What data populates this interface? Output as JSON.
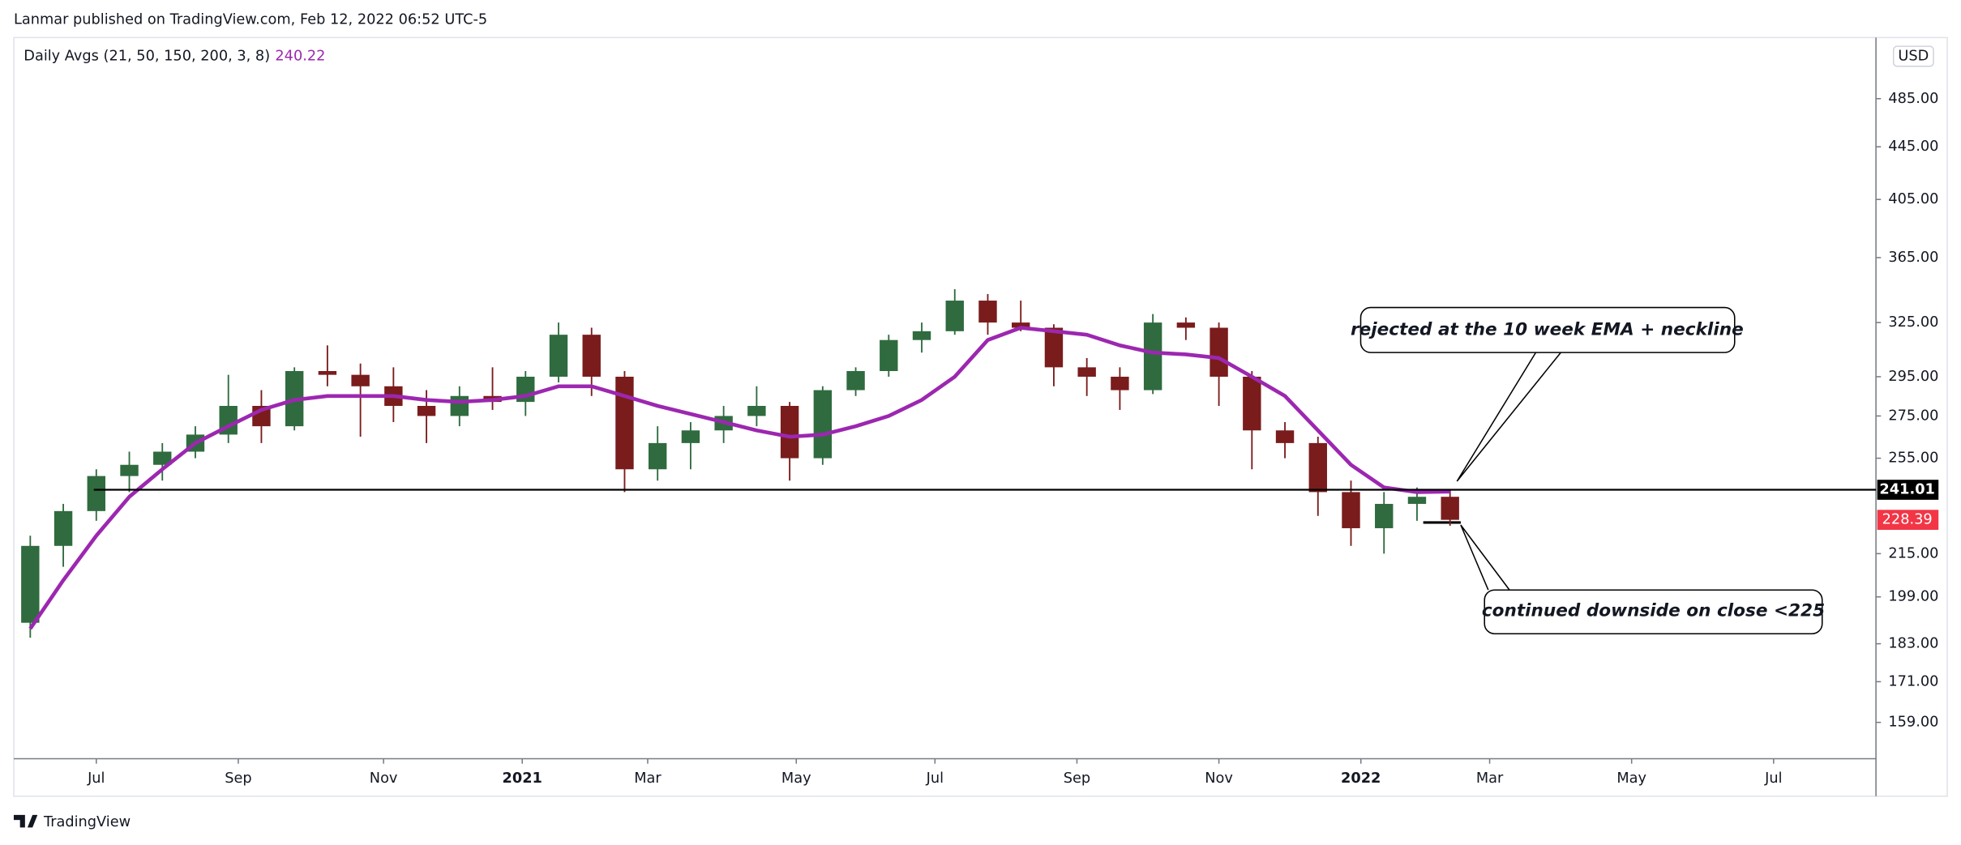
{
  "header": "Lanmar published on TradingView.com, Feb 12, 2022 06:52 UTC-5",
  "footer": "TradingView",
  "chart_data": {
    "type": "candlestick",
    "legend": "Daily Avgs (21, 50, 150, 200, 3, 8)",
    "currency": "USD",
    "log_scale": true,
    "up_color": "#2f6b3f",
    "down_color": "#7a1c1c",
    "open": [
      190,
      218,
      232,
      247,
      252,
      258,
      266,
      280,
      270,
      298,
      296,
      290,
      280,
      275,
      285,
      282,
      295,
      318,
      295,
      250,
      262,
      268,
      275,
      280,
      255,
      288,
      298,
      315,
      320,
      338,
      325,
      322,
      300,
      295,
      288,
      325,
      322,
      295,
      268,
      262,
      240,
      225,
      235,
      238
    ],
    "high": [
      222,
      235,
      250,
      258,
      262,
      270,
      296,
      288,
      300,
      312,
      302,
      300,
      288,
      290,
      300,
      298,
      325,
      322,
      298,
      270,
      272,
      280,
      290,
      282,
      290,
      300,
      318,
      325,
      345,
      342,
      338,
      324,
      305,
      300,
      330,
      328,
      325,
      298,
      272,
      265,
      245,
      240,
      242,
      241
    ],
    "low": [
      185,
      210,
      228,
      240,
      245,
      255,
      262,
      262,
      268,
      290,
      265,
      272,
      262,
      270,
      278,
      275,
      292,
      285,
      240,
      245,
      250,
      262,
      270,
      245,
      252,
      285,
      295,
      308,
      318,
      318,
      320,
      290,
      285,
      278,
      286,
      315,
      280,
      250,
      255,
      230,
      218,
      215,
      228,
      226
    ],
    "close": [
      218,
      232,
      247,
      252,
      258,
      266,
      280,
      270,
      298,
      296,
      290,
      280,
      275,
      285,
      282,
      295,
      318,
      295,
      250,
      262,
      268,
      275,
      280,
      255,
      288,
      298,
      315,
      320,
      338,
      325,
      322,
      300,
      295,
      288,
      325,
      322,
      295,
      268,
      262,
      240,
      225,
      235,
      238,
      228.39
    ],
    "ma": {
      "color": "#9c27b0",
      "values": [
        188,
        205,
        222,
        238,
        250,
        262,
        270,
        278,
        283,
        285,
        285,
        285,
        283,
        282,
        283,
        285,
        290,
        290,
        285,
        280,
        276,
        272,
        268,
        265,
        266,
        270,
        275,
        283,
        295,
        315,
        322,
        320,
        318,
        312,
        308,
        307,
        305,
        295,
        285,
        268,
        252,
        242,
        240,
        240.22
      ]
    },
    "hline": 241.01,
    "last_color": "#f23645",
    "xlim": [
      0,
      56.4
    ],
    "xticks": [
      {
        "value": 2.5,
        "label": "Jul"
      },
      {
        "value": 6.8,
        "label": "Sep"
      },
      {
        "value": 11.2,
        "label": "Nov"
      },
      {
        "value": 15.4,
        "label": "2021"
      },
      {
        "value": 19.2,
        "label": "Mar"
      },
      {
        "value": 23.7,
        "label": "May"
      },
      {
        "value": 27.9,
        "label": "Jul"
      },
      {
        "value": 32.2,
        "label": "Sep"
      },
      {
        "value": 36.5,
        "label": "Nov"
      },
      {
        "value": 40.8,
        "label": "2022"
      },
      {
        "value": 44.7,
        "label": "Mar"
      },
      {
        "value": 49.0,
        "label": "May"
      },
      {
        "value": 53.3,
        "label": "Jul"
      }
    ],
    "ylim": [
      149,
      541
    ],
    "yticks": [
      {
        "value": 485,
        "label": "485.00"
      },
      {
        "value": 445,
        "label": "445.00"
      },
      {
        "value": 405,
        "label": "405.00"
      },
      {
        "value": 365,
        "label": "365.00"
      },
      {
        "value": 325,
        "label": "325.00"
      },
      {
        "value": 295,
        "label": "295.00"
      },
      {
        "value": 275,
        "label": "275.00"
      },
      {
        "value": 255,
        "label": "255.00"
      },
      {
        "value": 215,
        "label": "215.00"
      },
      {
        "value": 199,
        "label": "199.00"
      },
      {
        "value": 183,
        "label": "183.00"
      },
      {
        "value": 171,
        "label": "171.00"
      },
      {
        "value": 159,
        "label": "159.00"
      }
    ],
    "annotations": [
      "rejected at the 10 week EMA + neckline",
      "continued downside on close <225"
    ]
  }
}
